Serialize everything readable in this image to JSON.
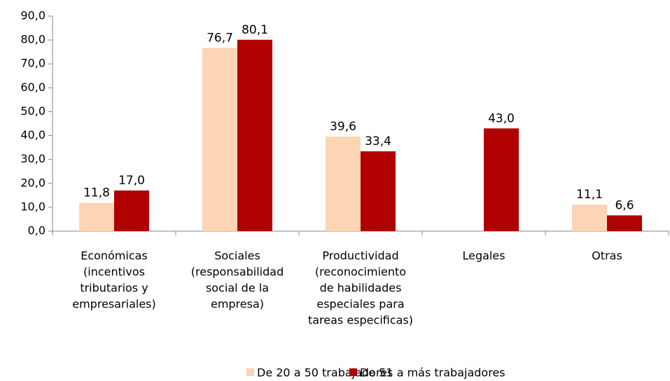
{
  "chart_data": {
    "type": "bar",
    "categories": [
      [
        "Económicas",
        "(incentivos",
        "tributarios y",
        "empresariales)"
      ],
      [
        "Sociales",
        "(responsabilidad",
        "social de la",
        "empresa)"
      ],
      [
        "Productividad",
        "(reconocimiento",
        "de habilidades",
        "especiales para",
        "tareas especificas)"
      ],
      [
        "Legales"
      ],
      [
        "Otras"
      ]
    ],
    "series": [
      {
        "name": "De 20 a 50 trabajadores",
        "color": "#fcd5b5",
        "values": [
          11.8,
          76.7,
          39.6,
          null,
          11.1
        ],
        "value_labels": [
          "11,8",
          "76,7",
          "39,6",
          null,
          "11,1"
        ]
      },
      {
        "name": "De 51 a más trabajadores",
        "color": "#b00000",
        "values": [
          17.0,
          80.1,
          33.4,
          43.0,
          6.6
        ],
        "value_labels": [
          "17,0",
          "80,1",
          "33,4",
          "43,0",
          "6,6"
        ]
      }
    ],
    "ylim": [
      0,
      90
    ],
    "yticks": [
      {
        "value": 0,
        "label": "0,0"
      },
      {
        "value": 10,
        "label": "10,0"
      },
      {
        "value": 20,
        "label": "20,0"
      },
      {
        "value": 30,
        "label": "30,0"
      },
      {
        "value": 40,
        "label": "40,0"
      },
      {
        "value": 50,
        "label": "50,0"
      },
      {
        "value": 60,
        "label": "60,0"
      },
      {
        "value": 70,
        "label": "70,0"
      },
      {
        "value": 80,
        "label": "80,0"
      },
      {
        "value": 90,
        "label": "90,0"
      }
    ],
    "grid": false,
    "legend": "bottom"
  }
}
